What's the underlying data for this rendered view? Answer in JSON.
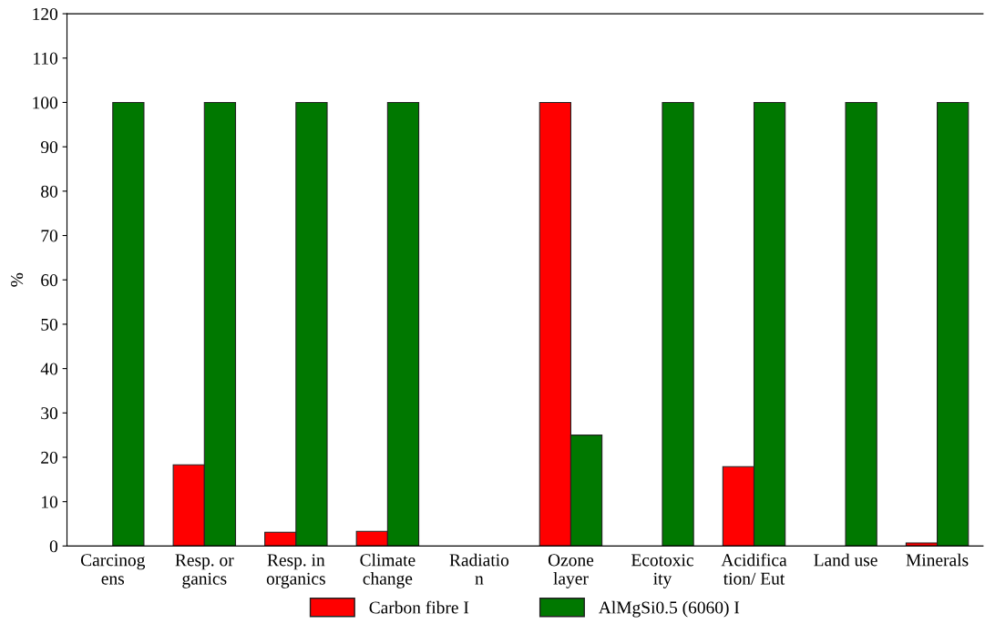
{
  "chart_data": {
    "type": "bar",
    "ylabel": "%",
    "categories": [
      "Carcinog\nens",
      "Resp. or\nganics",
      "Resp. in\norganics",
      "Climate\nchange",
      "Radiatio\nn",
      "Ozone\nlayer",
      "Ecotoxic\nity",
      "Acidifica\ntion/ Eut",
      "Land use",
      "Minerals"
    ],
    "series": [
      {
        "name": "Carbon fibre I",
        "color": "#ff0000",
        "values": [
          null,
          18.3,
          3.1,
          3.3,
          null,
          100,
          null,
          17.9,
          null,
          0.7
        ]
      },
      {
        "name": "AlMgSi0.5 (6060) I",
        "color": "#007800",
        "values": [
          100,
          100,
          100,
          100,
          null,
          25,
          100,
          100,
          100,
          100
        ]
      }
    ],
    "ylim": [
      0,
      120
    ],
    "yticks": [
      0,
      10,
      20,
      30,
      40,
      50,
      60,
      70,
      80,
      90,
      100,
      110,
      120
    ],
    "grid": false,
    "legend": "bottom"
  }
}
